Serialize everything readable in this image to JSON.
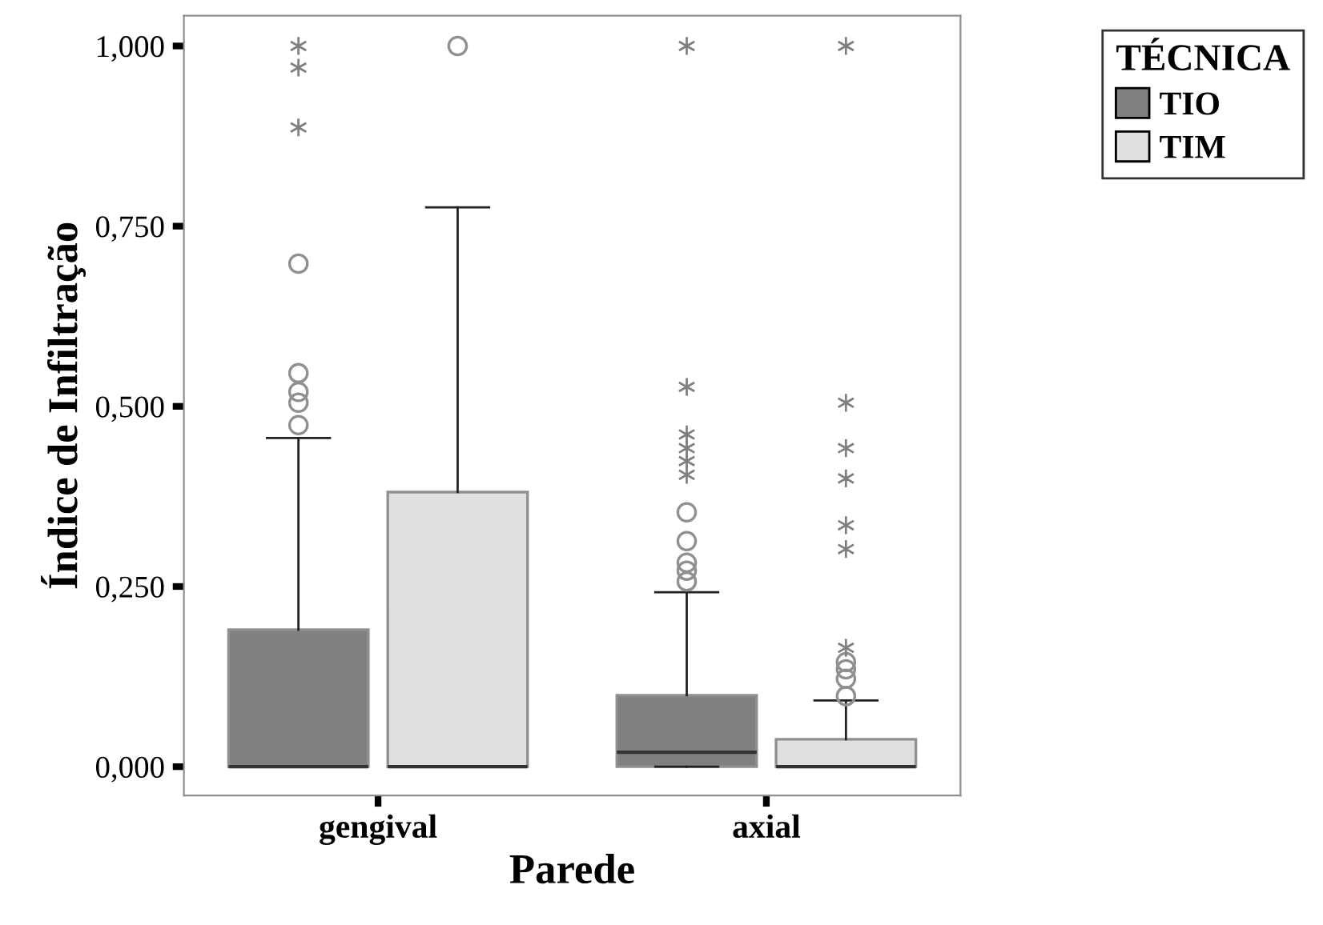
{
  "chart_data": {
    "type": "box",
    "xlabel": "Parede",
    "ylabel": "Índice de Infiltração",
    "legend_title": "TÉCNICA",
    "legend": "top right",
    "categories": [
      "gengival",
      "axial"
    ],
    "ylim": [
      -0.04,
      1.042
    ],
    "yticks": [
      {
        "value": 0,
        "label": "0,000"
      },
      {
        "value": 0.25,
        "label": "0,250"
      },
      {
        "value": 0.5,
        "label": "0,500"
      },
      {
        "value": 0.75,
        "label": "0,750"
      },
      {
        "value": 1,
        "label": "1,000"
      }
    ],
    "grid": false,
    "series": [
      {
        "name": "TIO",
        "color": "#808080",
        "boxes": [
          {
            "low": 0,
            "q1": 0,
            "median": 0,
            "q3": 0.19,
            "high": 0.456,
            "outliers": [
              0.474,
              0.505,
              0.52,
              0.546,
              0.698,
              0.887,
              0.97,
              1.0
            ]
          },
          {
            "low": 0,
            "q1": 0,
            "median": 0.02,
            "q3": 0.099,
            "high": 0.242,
            "outliers": [
              0.257,
              0.272,
              0.283,
              0.313,
              0.353,
              0.405,
              0.424,
              0.442,
              0.461,
              0.527,
              1.0
            ]
          }
        ]
      },
      {
        "name": "TIM",
        "color": "#e0e0e0",
        "boxes": [
          {
            "low": 0,
            "q1": 0,
            "median": 0,
            "q3": 0.381,
            "high": 0.776,
            "outliers": [
              1.0
            ]
          },
          {
            "low": 0,
            "q1": 0,
            "median": 0,
            "q3": 0.038,
            "high": 0.092,
            "outliers": [
              0.098,
              0.122,
              0.135,
              0.145,
              0.165,
              0.302,
              0.335,
              0.4,
              0.442,
              0.505,
              1.0
            ]
          }
        ]
      }
    ]
  }
}
